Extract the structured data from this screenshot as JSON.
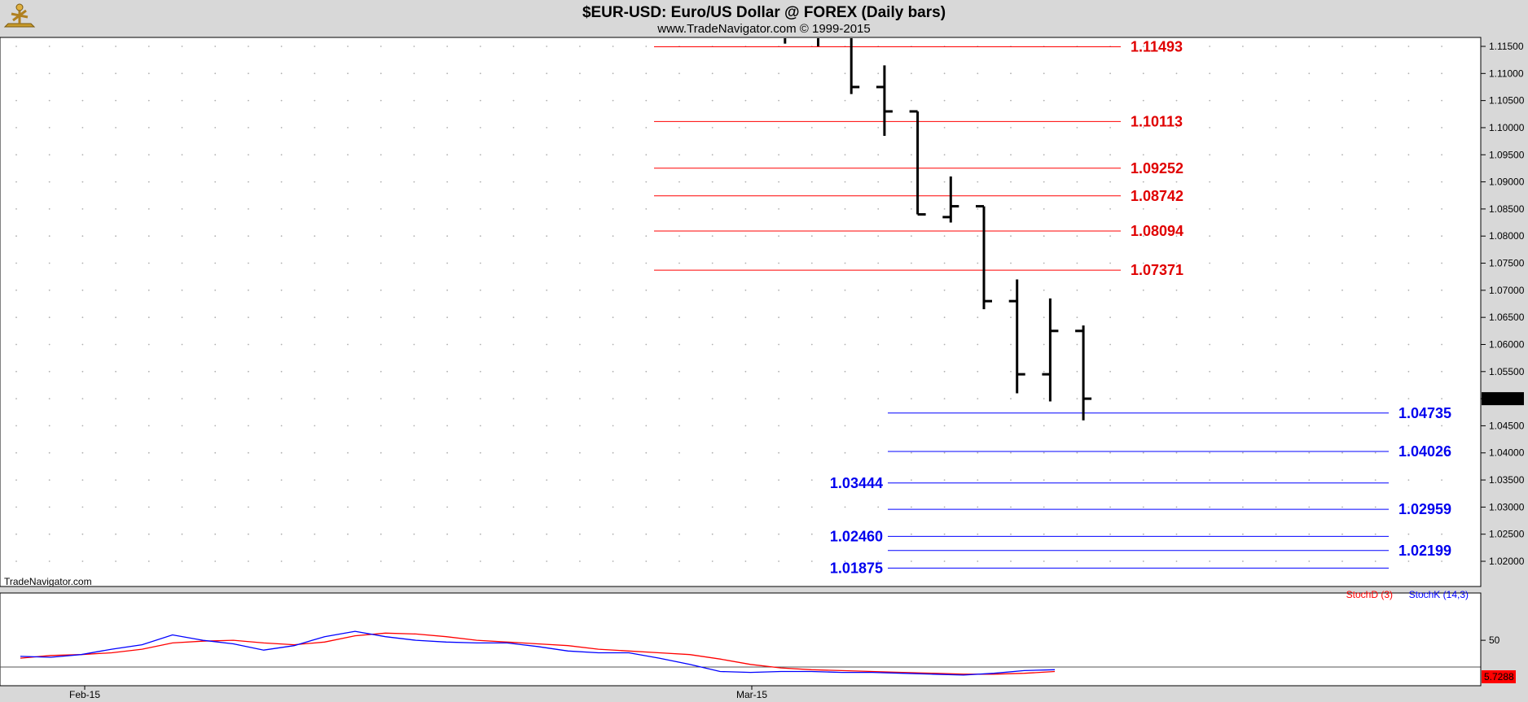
{
  "header": {
    "title": "$EUR-USD:  Euro/US Dollar @ FOREX  (Daily bars)",
    "subtitle": "www.TradeNavigator.com © 1999-2015"
  },
  "watermark": "TradeNavigator.com",
  "colors": {
    "background": "#d8d8d8",
    "panel": "#ffffff",
    "bars": "#000000",
    "red_levels": "#ff0000",
    "red_label": "#e00000",
    "blue_levels": "#0000ff",
    "blue_label": "#0000ee",
    "stoch_d": "#ff0000",
    "stoch_k": "#0000ff"
  },
  "chart_data": [
    {
      "type": "ohlc",
      "price_axis": {
        "ylim": [
          1.0155,
          1.1165
        ],
        "tick_labels": [
          "1.11500",
          "1.11000",
          "1.10500",
          "1.10000",
          "1.09500",
          "1.09000",
          "1.08500",
          "1.08000",
          "1.07500",
          "1.07000",
          "1.06500",
          "1.06000",
          "1.05500",
          "1.05000",
          "1.04500",
          "1.04000",
          "1.03500",
          "1.03000",
          "1.02500",
          "1.02000"
        ],
        "last_price_label": "1.05000"
      },
      "x_axis": {
        "tick_labels": [
          "Feb-15",
          "Mar-15"
        ]
      },
      "bars": [
        {
          "high": 1.1175,
          "low": 1.1155,
          "open": 1.118,
          "close": 1.1175
        },
        {
          "high": 1.118,
          "low": 1.115,
          "open": 1.1175,
          "close": 1.118
        },
        {
          "high": 1.117,
          "low": 1.1062,
          "open": 1.1185,
          "close": 1.1075
        },
        {
          "high": 1.1115,
          "low": 1.0985,
          "open": 1.1075,
          "close": 1.103
        },
        {
          "high": 1.103,
          "low": 1.084,
          "open": 1.103,
          "close": 1.084
        },
        {
          "high": 1.091,
          "low": 1.0825,
          "open": 1.0835,
          "close": 1.0855
        },
        {
          "high": 1.0855,
          "low": 1.0665,
          "open": 1.0855,
          "close": 1.068
        },
        {
          "high": 1.072,
          "low": 1.051,
          "open": 1.068,
          "close": 1.0545
        },
        {
          "high": 1.0685,
          "low": 1.0495,
          "open": 1.0545,
          "close": 1.0625
        },
        {
          "high": 1.0635,
          "low": 1.046,
          "open": 1.0625,
          "close": 1.05
        }
      ],
      "levels": [
        {
          "value": 1.11493,
          "label": "1.11493",
          "color": "red",
          "label_side": "right"
        },
        {
          "value": 1.10113,
          "label": "1.10113",
          "color": "red",
          "label_side": "right"
        },
        {
          "value": 1.09252,
          "label": "1.09252",
          "color": "red",
          "label_side": "right"
        },
        {
          "value": 1.08742,
          "label": "1.08742",
          "color": "red",
          "label_side": "right"
        },
        {
          "value": 1.08094,
          "label": "1.08094",
          "color": "red",
          "label_side": "right"
        },
        {
          "value": 1.07371,
          "label": "1.07371",
          "color": "red",
          "label_side": "right"
        },
        {
          "value": 1.04735,
          "label": "1.04735",
          "color": "blue",
          "label_side": "right"
        },
        {
          "value": 1.04026,
          "label": "1.04026",
          "color": "blue",
          "label_side": "right"
        },
        {
          "value": 1.03444,
          "label": "1.03444",
          "color": "blue",
          "label_side": "left"
        },
        {
          "value": 1.02959,
          "label": "1.02959",
          "color": "blue",
          "label_side": "right"
        },
        {
          "value": 1.0246,
          "label": "1.02460",
          "color": "blue",
          "label_side": "left"
        },
        {
          "value": 1.02199,
          "label": "1.02199",
          "color": "blue",
          "label_side": "right"
        },
        {
          "value": 1.01875,
          "label": "1.01875",
          "color": "blue",
          "label_side": "left"
        }
      ]
    },
    {
      "type": "line",
      "ylim": [
        0,
        100
      ],
      "reference_line": 20,
      "tick_labels": [
        "50"
      ],
      "last_value_label": "5.7288",
      "series": [
        {
          "name": "StochD (3)",
          "color": "#ff0000",
          "values": [
            30,
            33,
            34,
            36,
            40,
            47,
            49,
            50,
            47,
            45,
            48,
            55,
            58,
            57,
            54,
            50,
            48,
            46,
            44,
            40,
            38,
            36,
            34,
            29,
            23,
            19,
            17,
            16,
            15,
            14,
            13,
            12,
            12,
            13,
            15
          ]
        },
        {
          "name": "StochK (14,3)",
          "color": "#0000ff",
          "values": [
            32,
            31,
            34,
            40,
            45,
            56,
            50,
            46,
            39,
            44,
            54,
            60,
            54,
            50,
            48,
            47,
            47,
            43,
            38,
            36,
            36,
            30,
            23,
            15,
            14,
            15,
            15,
            14,
            14,
            13,
            12,
            11,
            13,
            16,
            17
          ]
        }
      ]
    }
  ]
}
